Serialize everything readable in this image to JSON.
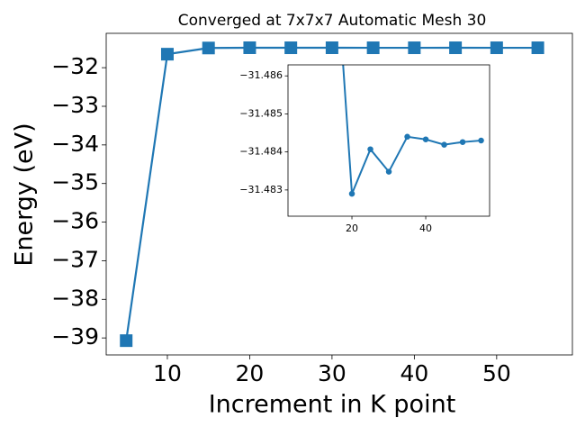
{
  "chart_data": [
    {
      "type": "line",
      "title": "Converged at 7x7x7 Automatic Mesh 30",
      "xlabel": "Increment in K point",
      "ylabel": "Energy (eV)",
      "x": [
        5,
        10,
        15,
        20,
        25,
        30,
        35,
        40,
        45,
        50,
        55
      ],
      "series": [
        {
          "color": "#1f77b4",
          "marker": "square",
          "values": [
            -39.07,
            -31.65,
            -31.49,
            -31.4829,
            -31.48407,
            -31.48348,
            -31.4844,
            -31.48433,
            -31.48419,
            -31.48426,
            -31.4843
          ]
        }
      ],
      "xlim": [
        2.57,
        59.2
      ],
      "ylim": [
        -39.44,
        -31.11
      ],
      "xticks": [
        10,
        20,
        30,
        40,
        50
      ],
      "yticks": [
        {
          "value": -32,
          "label": "−32"
        },
        {
          "value": -33,
          "label": "−33"
        },
        {
          "value": -34,
          "label": "−34"
        },
        {
          "value": -35,
          "label": "−35"
        },
        {
          "value": -36,
          "label": "−36"
        },
        {
          "value": -37,
          "label": "−37"
        },
        {
          "value": -38,
          "label": "−38"
        },
        {
          "value": -39,
          "label": "−39"
        }
      ]
    },
    {
      "type": "line",
      "x": [
        15,
        20,
        25,
        30,
        35,
        40,
        45,
        50,
        55
      ],
      "series": [
        {
          "color": "#1f77b4",
          "marker": "circle",
          "values": [
            -31.49,
            -31.4829,
            -31.48407,
            -31.48348,
            -31.4844,
            -31.48433,
            -31.48419,
            -31.48426,
            -31.4843
          ]
        }
      ],
      "xlim": [
        2.68,
        57.3
      ],
      "ylim": [
        -31.48231,
        -31.48629
      ],
      "xticks": [
        20,
        40
      ],
      "yticks": [
        {
          "value": -31.486,
          "label": "−31.486"
        },
        {
          "value": -31.485,
          "label": "−31.485"
        },
        {
          "value": -31.484,
          "label": "−31.484"
        },
        {
          "value": -31.483,
          "label": "−31.483"
        }
      ]
    }
  ]
}
